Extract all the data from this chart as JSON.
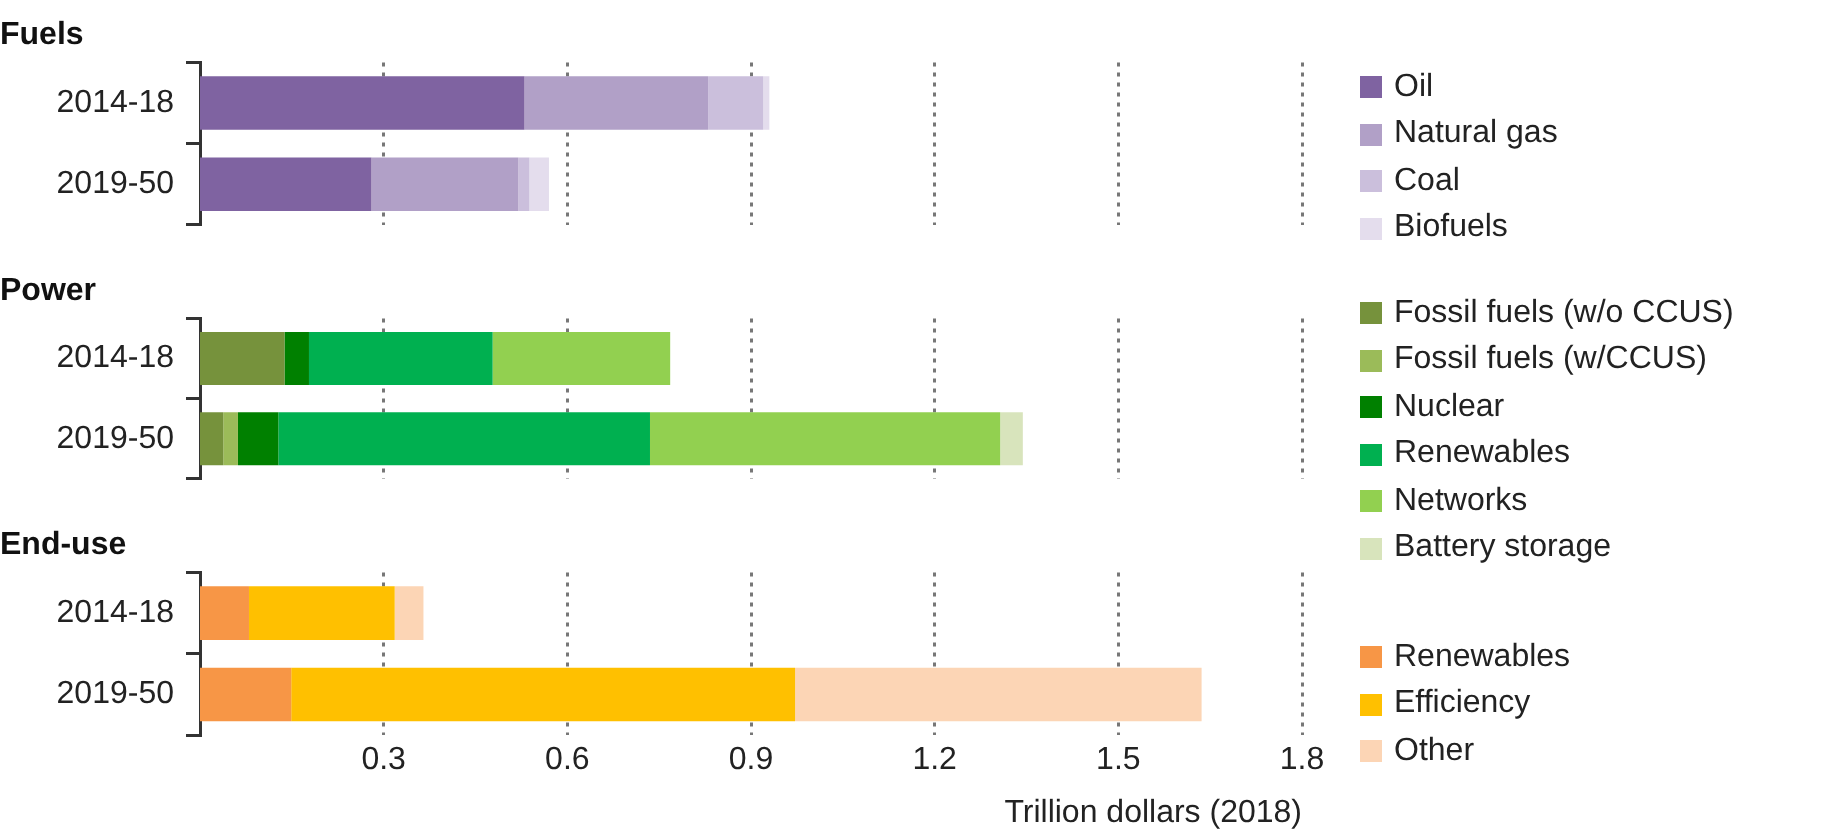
{
  "chart_data": [
    {
      "type": "bar",
      "title": "Fuels",
      "orientation": "horizontal",
      "stacked": true,
      "categories": [
        "2014-18",
        "2019-50"
      ],
      "series": [
        {
          "name": "Oil",
          "color": "#7f63a1",
          "values": [
            0.53,
            0.28
          ]
        },
        {
          "name": "Natural gas",
          "color": "#b1a0c7",
          "values": [
            0.3,
            0.24
          ]
        },
        {
          "name": "Coal",
          "color": "#cbbfdc",
          "values": [
            0.09,
            0.018
          ]
        },
        {
          "name": "Biofuels",
          "color": "#e4dded",
          "values": [
            0.01,
            0.032
          ]
        }
      ],
      "xlim": [
        0,
        1.8
      ],
      "xticks": [
        0.3,
        0.6,
        0.9,
        1.2,
        1.5,
        1.8
      ],
      "grid": "x",
      "legend": "right",
      "tick_labels": "y"
    },
    {
      "type": "bar",
      "title": "Power",
      "orientation": "horizontal",
      "stacked": true,
      "categories": [
        "2014-18",
        "2019-50"
      ],
      "series": [
        {
          "name": "Fossil fuels (w/o CCUS)",
          "color": "#76923c",
          "values": [
            0.138,
            0.038
          ]
        },
        {
          "name": "Fossil fuels (w/CCUS)",
          "color": "#9bbb59",
          "values": [
            null,
            0.024
          ]
        },
        {
          "name": "Nuclear",
          "color": "#008000",
          "values": [
            0.04,
            0.066
          ]
        },
        {
          "name": "Renewables",
          "color": "#00b050",
          "values": [
            0.3,
            0.607
          ]
        },
        {
          "name": "Networks",
          "color": "#92d050",
          "values": [
            0.29,
            0.572
          ]
        },
        {
          "name": "Battery storage",
          "color": "#d8e4bc",
          "values": [
            null,
            0.037
          ]
        }
      ],
      "xlim": [
        0,
        1.8
      ],
      "xticks": [
        0.3,
        0.6,
        0.9,
        1.2,
        1.5,
        1.8
      ],
      "grid": "x",
      "legend": "right",
      "tick_labels": "y"
    },
    {
      "type": "bar",
      "title": "End-use",
      "orientation": "horizontal",
      "stacked": true,
      "categories": [
        "2014-18",
        "2019-50"
      ],
      "series": [
        {
          "name": "Renewables",
          "color": "#f79646",
          "values": [
            0.08,
            0.149
          ]
        },
        {
          "name": "Efficiency",
          "color": "#ffc000",
          "values": [
            0.238,
            0.823
          ]
        },
        {
          "name": "Other",
          "color": "#fcd5b5",
          "values": [
            0.047,
            0.664
          ]
        }
      ],
      "xlim": [
        0,
        1.8
      ],
      "xticks": [
        0.3,
        0.6,
        0.9,
        1.2,
        1.5,
        1.8
      ],
      "xlabel": "Trillion dollars (2018)",
      "grid": "x",
      "legend": "right"
    }
  ]
}
